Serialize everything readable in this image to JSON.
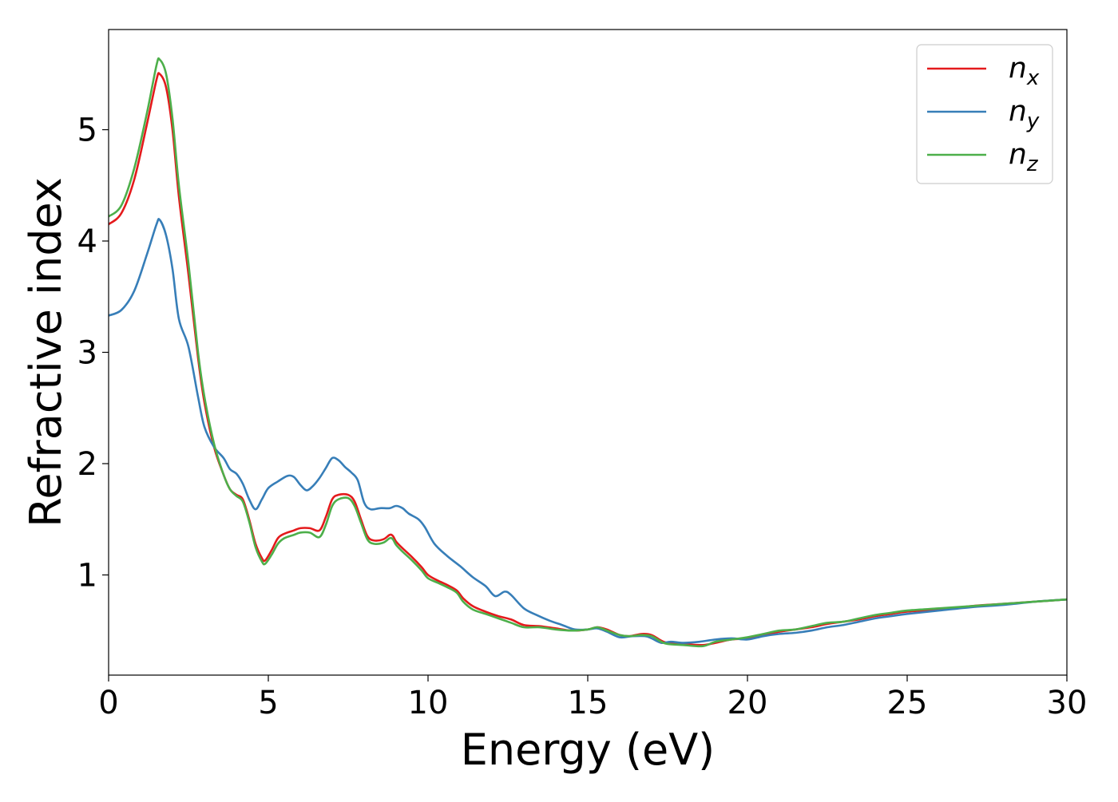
{
  "chart_data": {
    "type": "line",
    "xlabel": "Energy (eV)",
    "ylabel": "Refractive index",
    "xlim": [
      0,
      30
    ],
    "ylim": [
      0.1,
      5.9
    ],
    "x_ticks": [
      0,
      5,
      10,
      15,
      20,
      25,
      30
    ],
    "y_ticks": [
      1,
      2,
      3,
      4,
      5
    ],
    "grid": false,
    "legend_position": "top-right",
    "series": [
      {
        "name": "n",
        "subscript": "x",
        "color": "#e41a1c",
        "points": [
          [
            0,
            4.15
          ],
          [
            0.4,
            4.25
          ],
          [
            0.8,
            4.55
          ],
          [
            1.2,
            5.05
          ],
          [
            1.5,
            5.45
          ],
          [
            1.6,
            5.5
          ],
          [
            1.8,
            5.38
          ],
          [
            2.0,
            5.0
          ],
          [
            2.2,
            4.4
          ],
          [
            2.5,
            3.7
          ],
          [
            2.8,
            2.95
          ],
          [
            3.0,
            2.55
          ],
          [
            3.3,
            2.15
          ],
          [
            3.6,
            1.9
          ],
          [
            3.8,
            1.77
          ],
          [
            4.0,
            1.72
          ],
          [
            4.2,
            1.68
          ],
          [
            4.4,
            1.5
          ],
          [
            4.6,
            1.28
          ],
          [
            4.8,
            1.15
          ],
          [
            4.9,
            1.13
          ],
          [
            5.1,
            1.22
          ],
          [
            5.3,
            1.33
          ],
          [
            5.5,
            1.37
          ],
          [
            5.8,
            1.4
          ],
          [
            6.0,
            1.42
          ],
          [
            6.3,
            1.42
          ],
          [
            6.6,
            1.4
          ],
          [
            6.8,
            1.52
          ],
          [
            7.0,
            1.68
          ],
          [
            7.2,
            1.72
          ],
          [
            7.5,
            1.72
          ],
          [
            7.7,
            1.66
          ],
          [
            7.9,
            1.5
          ],
          [
            8.1,
            1.35
          ],
          [
            8.3,
            1.31
          ],
          [
            8.6,
            1.32
          ],
          [
            8.8,
            1.36
          ],
          [
            8.9,
            1.35
          ],
          [
            9.0,
            1.3
          ],
          [
            9.2,
            1.24
          ],
          [
            9.5,
            1.16
          ],
          [
            9.8,
            1.07
          ],
          [
            10.0,
            1.0
          ],
          [
            10.3,
            0.95
          ],
          [
            10.6,
            0.91
          ],
          [
            10.9,
            0.86
          ],
          [
            11.1,
            0.79
          ],
          [
            11.4,
            0.72
          ],
          [
            11.8,
            0.67
          ],
          [
            12.2,
            0.63
          ],
          [
            12.6,
            0.6
          ],
          [
            13.0,
            0.55
          ],
          [
            13.5,
            0.54
          ],
          [
            14.0,
            0.52
          ],
          [
            14.5,
            0.5
          ],
          [
            15.0,
            0.51
          ],
          [
            15.3,
            0.53
          ],
          [
            15.6,
            0.51
          ],
          [
            16.0,
            0.46
          ],
          [
            16.3,
            0.45
          ],
          [
            16.7,
            0.47
          ],
          [
            17.0,
            0.46
          ],
          [
            17.3,
            0.41
          ],
          [
            17.5,
            0.39
          ],
          [
            18.0,
            0.38
          ],
          [
            18.6,
            0.37
          ],
          [
            19.0,
            0.39
          ],
          [
            19.5,
            0.42
          ],
          [
            20.0,
            0.43
          ],
          [
            20.5,
            0.46
          ],
          [
            21.0,
            0.49
          ],
          [
            21.5,
            0.51
          ],
          [
            22.0,
            0.53
          ],
          [
            22.5,
            0.56
          ],
          [
            23.0,
            0.58
          ],
          [
            23.5,
            0.6
          ],
          [
            24.0,
            0.63
          ],
          [
            24.5,
            0.65
          ],
          [
            25.0,
            0.67
          ],
          [
            26.0,
            0.69
          ],
          [
            27.0,
            0.72
          ],
          [
            28.0,
            0.74
          ],
          [
            29.0,
            0.76
          ],
          [
            30.0,
            0.78
          ]
        ]
      },
      {
        "name": "n",
        "subscript": "y",
        "color": "#377eb8",
        "points": [
          [
            0,
            3.33
          ],
          [
            0.4,
            3.38
          ],
          [
            0.8,
            3.55
          ],
          [
            1.2,
            3.88
          ],
          [
            1.5,
            4.15
          ],
          [
            1.6,
            4.19
          ],
          [
            1.8,
            4.05
          ],
          [
            2.0,
            3.75
          ],
          [
            2.2,
            3.3
          ],
          [
            2.5,
            3.05
          ],
          [
            2.8,
            2.6
          ],
          [
            3.0,
            2.33
          ],
          [
            3.3,
            2.15
          ],
          [
            3.6,
            2.05
          ],
          [
            3.8,
            1.95
          ],
          [
            4.0,
            1.91
          ],
          [
            4.2,
            1.82
          ],
          [
            4.4,
            1.68
          ],
          [
            4.6,
            1.59
          ],
          [
            4.8,
            1.68
          ],
          [
            5.0,
            1.78
          ],
          [
            5.3,
            1.84
          ],
          [
            5.6,
            1.89
          ],
          [
            5.8,
            1.88
          ],
          [
            6.0,
            1.81
          ],
          [
            6.2,
            1.76
          ],
          [
            6.4,
            1.8
          ],
          [
            6.6,
            1.87
          ],
          [
            6.8,
            1.96
          ],
          [
            7.0,
            2.05
          ],
          [
            7.2,
            2.03
          ],
          [
            7.4,
            1.97
          ],
          [
            7.6,
            1.92
          ],
          [
            7.8,
            1.85
          ],
          [
            8.0,
            1.65
          ],
          [
            8.2,
            1.59
          ],
          [
            8.5,
            1.6
          ],
          [
            8.8,
            1.6
          ],
          [
            9.0,
            1.62
          ],
          [
            9.2,
            1.6
          ],
          [
            9.4,
            1.55
          ],
          [
            9.7,
            1.5
          ],
          [
            9.9,
            1.43
          ],
          [
            10.2,
            1.28
          ],
          [
            10.6,
            1.17
          ],
          [
            11.0,
            1.08
          ],
          [
            11.4,
            0.98
          ],
          [
            11.8,
            0.9
          ],
          [
            12.1,
            0.81
          ],
          [
            12.4,
            0.85
          ],
          [
            12.6,
            0.82
          ],
          [
            13.0,
            0.7
          ],
          [
            13.4,
            0.64
          ],
          [
            13.8,
            0.59
          ],
          [
            14.2,
            0.55
          ],
          [
            14.6,
            0.51
          ],
          [
            15.0,
            0.51
          ],
          [
            15.3,
            0.52
          ],
          [
            15.6,
            0.49
          ],
          [
            16.0,
            0.44
          ],
          [
            16.4,
            0.45
          ],
          [
            16.8,
            0.45
          ],
          [
            17.0,
            0.43
          ],
          [
            17.3,
            0.39
          ],
          [
            17.6,
            0.4
          ],
          [
            18.0,
            0.39
          ],
          [
            18.5,
            0.4
          ],
          [
            19.0,
            0.42
          ],
          [
            19.5,
            0.43
          ],
          [
            20.0,
            0.42
          ],
          [
            20.5,
            0.45
          ],
          [
            21.0,
            0.47
          ],
          [
            21.5,
            0.48
          ],
          [
            22.0,
            0.5
          ],
          [
            22.5,
            0.53
          ],
          [
            23.0,
            0.55
          ],
          [
            23.5,
            0.58
          ],
          [
            24.0,
            0.61
          ],
          [
            24.5,
            0.63
          ],
          [
            25.0,
            0.65
          ],
          [
            26.0,
            0.68
          ],
          [
            27.0,
            0.71
          ],
          [
            28.0,
            0.73
          ],
          [
            29.0,
            0.76
          ],
          [
            30.0,
            0.78
          ]
        ]
      },
      {
        "name": "n",
        "subscript": "z",
        "color": "#4daf4a",
        "points": [
          [
            0,
            4.22
          ],
          [
            0.4,
            4.32
          ],
          [
            0.8,
            4.65
          ],
          [
            1.2,
            5.15
          ],
          [
            1.5,
            5.58
          ],
          [
            1.6,
            5.63
          ],
          [
            1.8,
            5.5
          ],
          [
            2.0,
            5.1
          ],
          [
            2.2,
            4.5
          ],
          [
            2.5,
            3.8
          ],
          [
            2.8,
            3.0
          ],
          [
            3.0,
            2.6
          ],
          [
            3.3,
            2.18
          ],
          [
            3.6,
            1.9
          ],
          [
            3.8,
            1.77
          ],
          [
            4.0,
            1.71
          ],
          [
            4.2,
            1.66
          ],
          [
            4.4,
            1.48
          ],
          [
            4.6,
            1.25
          ],
          [
            4.8,
            1.12
          ],
          [
            4.9,
            1.1
          ],
          [
            5.1,
            1.18
          ],
          [
            5.3,
            1.28
          ],
          [
            5.5,
            1.33
          ],
          [
            5.8,
            1.36
          ],
          [
            6.0,
            1.38
          ],
          [
            6.3,
            1.38
          ],
          [
            6.6,
            1.34
          ],
          [
            6.8,
            1.45
          ],
          [
            7.0,
            1.62
          ],
          [
            7.2,
            1.68
          ],
          [
            7.5,
            1.69
          ],
          [
            7.7,
            1.62
          ],
          [
            7.9,
            1.47
          ],
          [
            8.1,
            1.32
          ],
          [
            8.3,
            1.28
          ],
          [
            8.6,
            1.29
          ],
          [
            8.8,
            1.33
          ],
          [
            8.9,
            1.32
          ],
          [
            9.0,
            1.27
          ],
          [
            9.2,
            1.21
          ],
          [
            9.5,
            1.13
          ],
          [
            9.8,
            1.04
          ],
          [
            10.0,
            0.97
          ],
          [
            10.3,
            0.93
          ],
          [
            10.6,
            0.89
          ],
          [
            10.9,
            0.84
          ],
          [
            11.1,
            0.76
          ],
          [
            11.4,
            0.69
          ],
          [
            11.8,
            0.65
          ],
          [
            12.2,
            0.61
          ],
          [
            12.6,
            0.57
          ],
          [
            13.0,
            0.53
          ],
          [
            13.5,
            0.53
          ],
          [
            14.0,
            0.51
          ],
          [
            14.5,
            0.5
          ],
          [
            15.0,
            0.51
          ],
          [
            15.3,
            0.53
          ],
          [
            15.6,
            0.5
          ],
          [
            16.0,
            0.46
          ],
          [
            16.3,
            0.45
          ],
          [
            16.7,
            0.46
          ],
          [
            17.0,
            0.45
          ],
          [
            17.3,
            0.4
          ],
          [
            17.5,
            0.38
          ],
          [
            18.0,
            0.37
          ],
          [
            18.6,
            0.36
          ],
          [
            19.0,
            0.4
          ],
          [
            19.5,
            0.42
          ],
          [
            20.0,
            0.44
          ],
          [
            20.5,
            0.47
          ],
          [
            21.0,
            0.5
          ],
          [
            21.5,
            0.51
          ],
          [
            22.0,
            0.54
          ],
          [
            22.5,
            0.57
          ],
          [
            23.0,
            0.58
          ],
          [
            23.5,
            0.61
          ],
          [
            24.0,
            0.64
          ],
          [
            24.5,
            0.66
          ],
          [
            25.0,
            0.68
          ],
          [
            26.0,
            0.7
          ],
          [
            27.0,
            0.72
          ],
          [
            28.0,
            0.74
          ],
          [
            29.0,
            0.76
          ],
          [
            30.0,
            0.78
          ]
        ]
      }
    ]
  }
}
